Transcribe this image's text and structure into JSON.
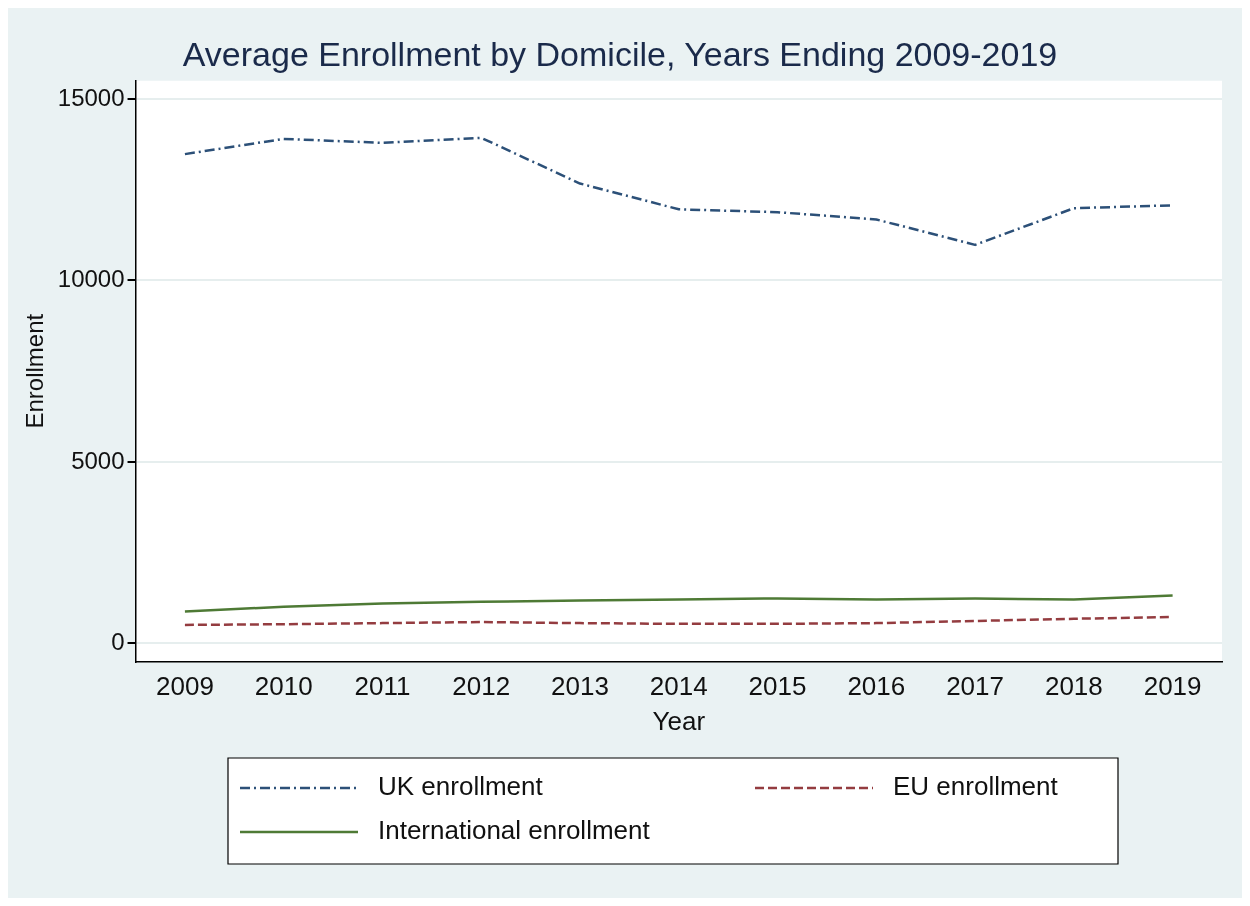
{
  "chart_data": {
    "type": "line",
    "title": "Average Enrollment by Domicile, Years Ending 2009-2019",
    "xlabel": "Year",
    "ylabel": "Enrollment",
    "categories": [
      "2009",
      "2010",
      "2011",
      "2012",
      "2013",
      "2014",
      "2015",
      "2016",
      "2017",
      "2018",
      "2019"
    ],
    "series": [
      {
        "name": "UK enrollment",
        "color": "#2c5078",
        "line_style": "dashdot",
        "values": [
          13480,
          13900,
          13790,
          13930,
          12670,
          11960,
          11880,
          11680,
          10980,
          11990,
          12070
        ]
      },
      {
        "name": "EU enrollment",
        "color": "#943c40",
        "line_style": "dashed",
        "values": [
          510,
          530,
          560,
          590,
          560,
          540,
          540,
          560,
          620,
          680,
          730
        ]
      },
      {
        "name": "International enrollment",
        "color": "#4e7a35",
        "line_style": "solid",
        "values": [
          880,
          1010,
          1100,
          1150,
          1180,
          1210,
          1240,
          1210,
          1240,
          1210,
          1320
        ]
      }
    ],
    "ylim": [
      -500,
      15500
    ],
    "yticks": [
      0,
      5000,
      10000,
      15000
    ],
    "grid": "y",
    "legend": "bottom",
    "marker": "none"
  }
}
